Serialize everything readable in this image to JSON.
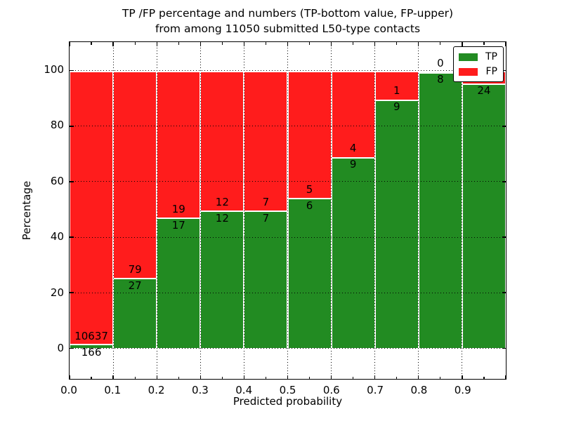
{
  "title": {
    "line1": "TP /FP percentage and numbers (TP-bottom value, FP-upper)",
    "line2": "from among 11050 submitted L50-type contacts"
  },
  "axes": {
    "xlabel": "Predicted probability",
    "ylabel": "Percentage",
    "x_tick_labels": [
      "0.0",
      "0.1",
      "0.2",
      "0.3",
      "0.4",
      "0.5",
      "0.6",
      "0.7",
      "0.8",
      "0.9"
    ],
    "y_tick_labels": [
      "0",
      "20",
      "40",
      "60",
      "80",
      "100"
    ]
  },
  "legend": {
    "items": [
      {
        "label": "TP",
        "color": "#228B22"
      },
      {
        "label": "FP",
        "color": "#FF1C1C"
      }
    ]
  },
  "colors": {
    "tp_green": "#228B22",
    "fp_red": "#FF1C1C",
    "bar_edge": "#ffffff",
    "grid": "#000000"
  },
  "chart_data": {
    "type": "bar",
    "subtype": "stacked-percentage",
    "title": "TP /FP percentage and numbers (TP-bottom value, FP-upper) from among 11050 submitted L50-type contacts",
    "xlabel": "Predicted probability",
    "ylabel": "Percentage",
    "xlim": [
      0.0,
      1.0
    ],
    "ylim": [
      -11,
      109
    ],
    "grid": "dotted black, x every 0.1, y every 20",
    "legend_position": "upper right",
    "bin_width": 0.1,
    "bins": [
      "0.0-0.1",
      "0.1-0.2",
      "0.2-0.3",
      "0.3-0.4",
      "0.4-0.5",
      "0.5-0.6",
      "0.6-0.7",
      "0.7-0.8",
      "0.8-0.9",
      "0.9-1.0"
    ],
    "bars": [
      {
        "bin": "0.0-0.1",
        "tp_label": "166",
        "fp_label": "10637",
        "tp_pct": 1.54
      },
      {
        "bin": "0.1-0.2",
        "tp_label": "27",
        "fp_label": "79",
        "tp_pct": 25.47
      },
      {
        "bin": "0.2-0.3",
        "tp_label": "17",
        "fp_label": "19",
        "tp_pct": 47.22
      },
      {
        "bin": "0.3-0.4",
        "tp_label": "12",
        "fp_label": "12",
        "tp_pct": 50
      },
      {
        "bin": "0.4-0.5",
        "tp_label": "7",
        "fp_label": "7",
        "tp_pct": 50
      },
      {
        "bin": "0.5-0.6",
        "tp_label": "6",
        "fp_label": "5",
        "tp_pct": 54.55
      },
      {
        "bin": "0.6-0.7",
        "tp_label": "9",
        "fp_label": "4",
        "tp_pct": 69.23
      },
      {
        "bin": "0.7-0.8",
        "tp_label": "9",
        "fp_label": "1",
        "tp_pct": 90
      },
      {
        "bin": "0.8-0.9",
        "tp_label": "8",
        "fp_label": "0",
        "tp_pct": 100
      },
      {
        "bin": "0.9-1.0",
        "tp_label": "24",
        "fp_label": "",
        "tp_pct": 96
      }
    ],
    "series": [
      {
        "name": "TP",
        "values": [
          166,
          27,
          17,
          12,
          7,
          6,
          9,
          9,
          8,
          24
        ]
      },
      {
        "name": "FP",
        "values": [
          10637,
          79,
          19,
          12,
          7,
          5,
          4,
          1,
          0,
          null
        ]
      }
    ]
  }
}
